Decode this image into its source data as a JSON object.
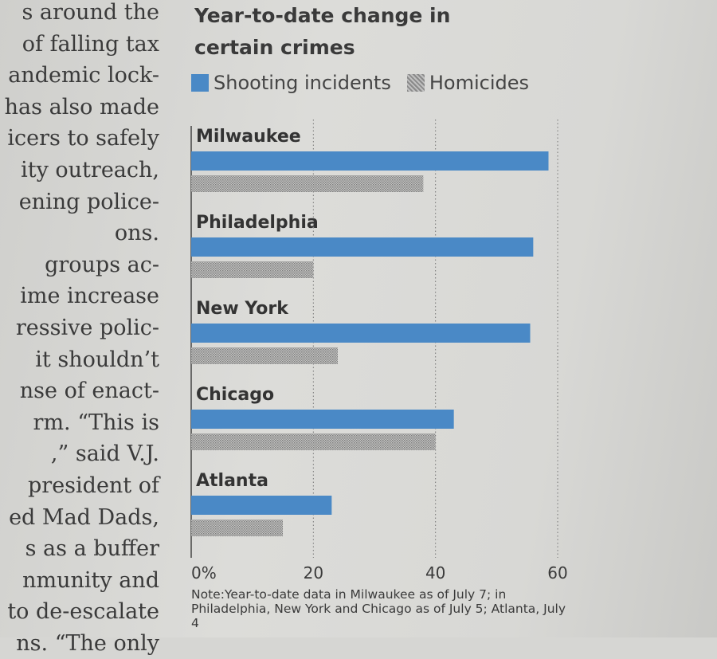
{
  "article_text": [
    "s around the",
    "of falling tax",
    "andemic lock-",
    "has also made",
    "icers to safely",
    "ity outreach,",
    "ening police-",
    "ons.",
    "groups   ac-",
    "ime increase",
    "ressive polic-",
    "it  shouldn’t",
    "nse of enact-",
    "rm.  “This is",
    ",”  said  V.J.",
    "president  of",
    "ed Mad Dads,",
    "s as a buffer",
    "nmunity  and",
    "to de-escalate",
    "ns.  “The  only"
  ],
  "chart_data": {
    "type": "bar",
    "orientation": "horizontal",
    "title": "Year-to-date change in certain crimes",
    "title_lines": [
      "Year-to-date change in",
      "certain crimes"
    ],
    "categories": [
      "Milwaukee",
      "Philadelphia",
      "New York",
      "Chicago",
      "Atlanta"
    ],
    "series": [
      {
        "name": "Shooting incidents",
        "color": "#4a89c6",
        "values": [
          58.5,
          56,
          55.5,
          43,
          23
        ]
      },
      {
        "name": "Homicides",
        "color": "#a3a3a3",
        "values": [
          38,
          20,
          24,
          40,
          15
        ]
      }
    ],
    "xlim": [
      0,
      60
    ],
    "xticks": [
      0,
      20,
      40,
      60
    ],
    "xtick_labels": [
      "0%",
      "20",
      "40",
      "60"
    ],
    "grid": true,
    "legend_position": "top",
    "note": "Note:Year-to-date data in Milwaukee as of July 7; in Philadelphia, New York and Chicago as of July 5; Atlanta, July 4"
  }
}
